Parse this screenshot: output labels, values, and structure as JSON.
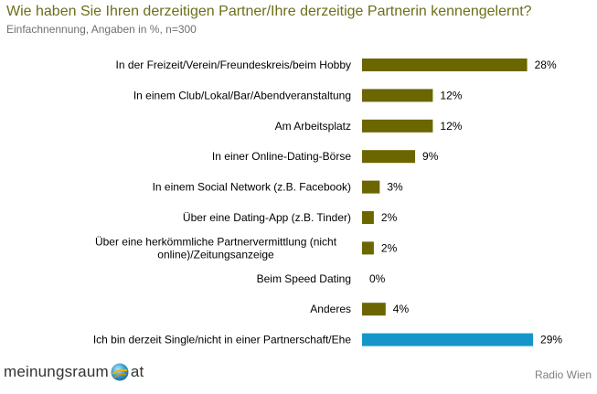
{
  "header": {
    "title": "Wie haben Sie Ihren derzeitigen Partner/Ihre derzeitige Partnerin kennengelernt?",
    "subtitle": "Einfachnennung, Angaben in %, n=300"
  },
  "footer": {
    "logo_left": "meinungsraum",
    "logo_right": "at",
    "logo_icon": "globe-icon",
    "source": "Radio Wien"
  },
  "colors": {
    "bar_default": "#6b6600",
    "bar_highlight": "#1596c8",
    "title": "#6e6e1a"
  },
  "chart_data": {
    "type": "bar",
    "orientation": "horizontal",
    "title": "Wie haben Sie Ihren derzeitigen Partner/Ihre derzeitige Partnerin kennengelernt?",
    "subtitle": "Einfachnennung, Angaben in %, n=300",
    "unit": "%",
    "xlim": [
      0,
      30
    ],
    "grid": false,
    "legend": "none",
    "categories": [
      [
        "In der Freizeit/Verein/Freundeskreis/beim Hobby"
      ],
      [
        "In einem Club/Lokal/Bar/Abendveranstaltung"
      ],
      [
        "Am Arbeitsplatz"
      ],
      [
        "In einer Online-Dating-Börse"
      ],
      [
        "In einem Social Network (z.B. Facebook)"
      ],
      [
        "Über eine Dating-App (z.B. Tinder)"
      ],
      [
        "Über eine herkömmliche Partnervermittlung (nicht",
        "online)/Zeitungsanzeige"
      ],
      [
        "Beim Speed Dating"
      ],
      [
        "Anderes"
      ],
      [
        "Ich bin derzeit Single/nicht in einer Partnerschaft/Ehe"
      ]
    ],
    "values": [
      28,
      12,
      12,
      9,
      3,
      2,
      2,
      0,
      4,
      29
    ],
    "value_labels": [
      "28%",
      "12%",
      "12%",
      "9%",
      "3%",
      "2%",
      "2%",
      "0%",
      "4%",
      "29%"
    ],
    "highlight": [
      false,
      false,
      false,
      false,
      false,
      false,
      false,
      false,
      false,
      true
    ]
  }
}
